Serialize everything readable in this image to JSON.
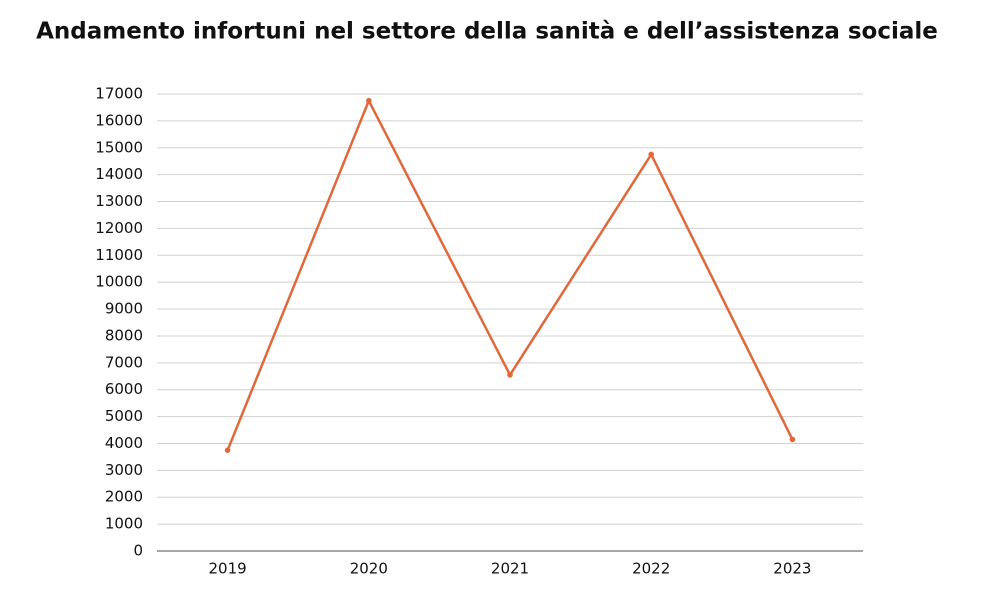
{
  "chart_data": {
    "type": "line",
    "title": "Andamento infortuni nel settore della sanità e dell’assistenza sociale",
    "categories": [
      "2019",
      "2020",
      "2021",
      "2022",
      "2023"
    ],
    "values": [
      3750,
      16750,
      6550,
      14750,
      4150
    ],
    "color": "#e0683a",
    "ylim": [
      0,
      17000
    ],
    "yticks": [
      0,
      1000,
      2000,
      3000,
      4000,
      5000,
      6000,
      7000,
      8000,
      9000,
      10000,
      11000,
      12000,
      13000,
      14000,
      15000,
      16000,
      17000
    ],
    "grid": true
  }
}
